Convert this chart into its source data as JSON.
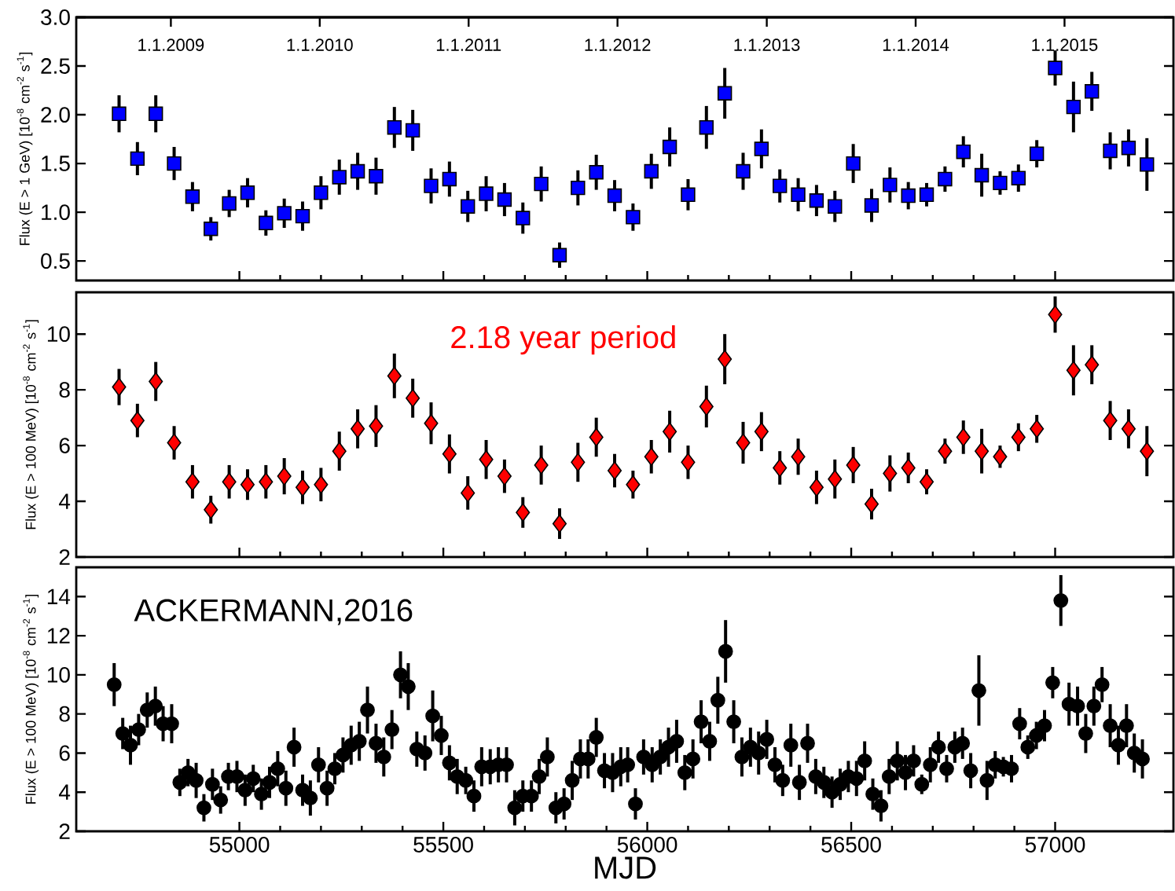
{
  "chart_data": [
    {
      "type": "scatter",
      "ylabel": "Flux (E > 1 GeV) [10$^{-8}$ cm$^{-2}$ s$^{-1}$]",
      "marker": "square",
      "color": "#0000ff",
      "tick_labels": "y",
      "xlim": [
        54600,
        57290
      ],
      "xticks": [
        55000,
        55500,
        56000,
        56500,
        57000
      ],
      "x2lim": [
        "2008-05-14",
        "2015-09-25"
      ],
      "x2ticks": [
        {
          "value": "2009-01-01",
          "label": "1.1.2009"
        },
        {
          "value": "2010-01-01",
          "label": "1.1.2010"
        },
        {
          "value": "2011-01-01",
          "label": "1.1.2011"
        },
        {
          "value": "2012-01-01",
          "label": "1.1.2012"
        },
        {
          "value": "2013-01-01",
          "label": "1.1.2013"
        },
        {
          "value": "2014-01-01",
          "label": "1.1.2014"
        },
        {
          "value": "2015-01-01",
          "label": "1.1.2015"
        }
      ],
      "ylim": [
        0.3,
        3.0
      ],
      "yticks": [
        0.5,
        {
          "value": 1,
          "label": "1.0"
        },
        1.5,
        {
          "value": 2,
          "label": "2.0"
        },
        2.5,
        {
          "value": 3,
          "label": "3.0"
        }
      ],
      "x": [
        54705,
        54750,
        54795,
        54840,
        54885,
        54930,
        54975,
        55020,
        55065,
        55110,
        55155,
        55200,
        55245,
        55290,
        55335,
        55380,
        55425,
        55470,
        55515,
        55560,
        55605,
        55650,
        55695,
        55740,
        55785,
        55830,
        55875,
        55920,
        55965,
        56010,
        56055,
        56100,
        56145,
        56190,
        56235,
        56280,
        56325,
        56370,
        56415,
        56460,
        56505,
        56550,
        56595,
        56640,
        56685,
        56730,
        56775,
        56820,
        56865,
        56910,
        56955,
        57000,
        57045,
        57090,
        57135,
        57180,
        57225
      ],
      "values": [
        2.01,
        1.55,
        2.01,
        1.5,
        1.16,
        0.83,
        1.09,
        1.2,
        0.89,
        0.99,
        0.96,
        1.2,
        1.36,
        1.42,
        1.37,
        1.87,
        1.84,
        1.27,
        1.34,
        1.06,
        1.19,
        1.13,
        0.94,
        1.29,
        0.56,
        1.25,
        1.41,
        1.17,
        0.95,
        1.42,
        1.67,
        1.18,
        1.87,
        2.22,
        1.42,
        1.65,
        1.27,
        1.18,
        1.12,
        1.06,
        1.5,
        1.07,
        1.28,
        1.17,
        1.18,
        1.34,
        1.62,
        1.38,
        1.3,
        1.35,
        1.6,
        2.48,
        2.08,
        2.24,
        1.63,
        1.66,
        1.49
      ],
      "errors": [
        0.19,
        0.17,
        0.19,
        0.17,
        0.15,
        0.12,
        0.14,
        0.15,
        0.13,
        0.15,
        0.15,
        0.17,
        0.18,
        0.19,
        0.19,
        0.21,
        0.21,
        0.18,
        0.18,
        0.16,
        0.18,
        0.17,
        0.16,
        0.18,
        0.13,
        0.18,
        0.18,
        0.16,
        0.14,
        0.18,
        0.2,
        0.16,
        0.22,
        0.26,
        0.19,
        0.2,
        0.17,
        0.17,
        0.16,
        0.16,
        0.2,
        0.17,
        0.18,
        0.14,
        0.12,
        0.13,
        0.16,
        0.22,
        0.12,
        0.14,
        0.14,
        0.18,
        0.26,
        0.2,
        0.19,
        0.19,
        0.27
      ]
    },
    {
      "type": "scatter",
      "ylabel": "Flux (E > 100 MeV) [10$^{-8}$ cm$^{-2}$ s$^{-1}$]",
      "marker": "diamond",
      "color": "#ff0000",
      "tick_labels": "y",
      "annotations": [
        "2.18 year period"
      ],
      "xlim": [
        54600,
        57290
      ],
      "xticks": [
        55000,
        55500,
        56000,
        56500,
        57000
      ],
      "ylim": [
        2,
        11.5
      ],
      "yticks": [
        2,
        4,
        6,
        8,
        10
      ],
      "x": [
        54705,
        54750,
        54795,
        54840,
        54885,
        54930,
        54975,
        55020,
        55065,
        55110,
        55155,
        55200,
        55245,
        55290,
        55335,
        55380,
        55425,
        55470,
        55515,
        55560,
        55605,
        55650,
        55695,
        55740,
        55785,
        55830,
        55875,
        55920,
        55965,
        56010,
        56055,
        56100,
        56145,
        56190,
        56235,
        56280,
        56325,
        56370,
        56415,
        56460,
        56505,
        56550,
        56595,
        56640,
        56685,
        56730,
        56775,
        56820,
        56865,
        56910,
        56955,
        57000,
        57045,
        57090,
        57135,
        57180,
        57225
      ],
      "values": [
        8.1,
        6.9,
        8.3,
        6.1,
        4.7,
        3.7,
        4.7,
        4.6,
        4.7,
        4.9,
        4.5,
        4.6,
        5.8,
        6.6,
        6.7,
        8.5,
        7.7,
        6.8,
        5.7,
        4.3,
        5.5,
        4.9,
        3.6,
        5.3,
        3.2,
        5.4,
        6.3,
        5.1,
        4.6,
        5.6,
        6.5,
        5.4,
        7.4,
        9.1,
        6.1,
        6.5,
        5.2,
        5.6,
        4.5,
        4.8,
        5.3,
        3.9,
        5.0,
        5.2,
        4.7,
        5.8,
        6.3,
        5.8,
        5.6,
        6.3,
        6.6,
        10.7,
        8.7,
        8.9,
        6.9,
        6.6,
        5.8
      ],
      "errors": [
        0.65,
        0.6,
        0.7,
        0.6,
        0.6,
        0.5,
        0.6,
        0.55,
        0.6,
        0.65,
        0.6,
        0.6,
        0.7,
        0.7,
        0.75,
        0.8,
        0.7,
        0.75,
        0.7,
        0.6,
        0.7,
        0.6,
        0.55,
        0.7,
        0.55,
        0.7,
        0.7,
        0.6,
        0.5,
        0.6,
        0.75,
        0.6,
        0.75,
        0.9,
        0.75,
        0.7,
        0.6,
        0.65,
        0.6,
        0.7,
        0.65,
        0.55,
        0.65,
        0.55,
        0.45,
        0.45,
        0.6,
        0.8,
        0.4,
        0.5,
        0.5,
        0.65,
        0.9,
        0.7,
        0.7,
        0.7,
        0.9
      ]
    },
    {
      "type": "scatter",
      "ylabel": "Flux (E > 100 MeV) [10$^{-8}$ cm$^{-2}$ s$^{-1}$]",
      "xlabel": "MJD",
      "marker": "circle",
      "color": "#000000",
      "annotations": [
        "ACKERMANN,2016"
      ],
      "xlim": [
        54600,
        57290
      ],
      "xticks": [
        55000,
        55500,
        56000,
        56500,
        57000
      ],
      "ylim": [
        2,
        15.5
      ],
      "yticks": [
        2,
        4,
        6,
        8,
        10,
        12,
        14
      ],
      "x": [
        54693,
        54714,
        54733,
        54753,
        54774,
        54794,
        54813,
        54834,
        54854,
        54874,
        54894,
        54913,
        54934,
        54954,
        54973,
        54994,
        55014,
        55034,
        55054,
        55074,
        55094,
        55114,
        55134,
        55155,
        55174,
        55194,
        55215,
        55234,
        55254,
        55274,
        55294,
        55314,
        55335,
        55354,
        55374,
        55395,
        55414,
        55435,
        55455,
        55474,
        55495,
        55515,
        55534,
        55555,
        55575,
        55594,
        55615,
        55635,
        55655,
        55675,
        55695,
        55716,
        55735,
        55755,
        55776,
        55796,
        55816,
        55836,
        55855,
        55875,
        55895,
        55915,
        55935,
        55952,
        55971,
        55991,
        56012,
        56032,
        56052,
        56072,
        56092,
        56112,
        56132,
        56153,
        56173,
        56192,
        56212,
        56232,
        56253,
        56273,
        56293,
        56313,
        56332,
        56352,
        56373,
        56393,
        56413,
        56433,
        56453,
        56473,
        56493,
        56513,
        56533,
        56553,
        56573,
        56593,
        56613,
        56633,
        56653,
        56673,
        56694,
        56714,
        56734,
        56754,
        56773,
        56793,
        56813,
        56833,
        56853,
        56873,
        56893,
        56913,
        56933,
        56954,
        56974,
        56994,
        57014,
        57034,
        57055,
        57075,
        57095,
        57115,
        57135,
        57155,
        57175,
        57194,
        57214
      ],
      "values": [
        9.5,
        7.0,
        6.4,
        7.2,
        8.2,
        8.4,
        7.5,
        7.5,
        4.5,
        5.0,
        4.6,
        3.2,
        4.4,
        3.6,
        4.8,
        4.8,
        4.1,
        4.7,
        3.9,
        4.5,
        5.2,
        4.2,
        6.3,
        4.1,
        3.7,
        5.4,
        4.2,
        5.2,
        5.9,
        6.4,
        6.6,
        8.2,
        6.5,
        5.8,
        7.2,
        10.0,
        9.4,
        6.2,
        6.0,
        7.9,
        6.9,
        5.5,
        4.8,
        4.6,
        3.8,
        5.3,
        5.3,
        5.4,
        5.4,
        3.2,
        3.8,
        3.8,
        4.8,
        5.8,
        3.2,
        3.4,
        4.6,
        5.7,
        5.7,
        6.8,
        5.1,
        5.0,
        5.3,
        5.4,
        3.4,
        5.8,
        5.4,
        5.8,
        6.3,
        6.6,
        5.0,
        5.7,
        7.6,
        6.6,
        8.7,
        11.2,
        7.6,
        5.8,
        6.3,
        6.0,
        6.7,
        5.4,
        4.6,
        6.4,
        4.5,
        6.5,
        4.8,
        4.5,
        4.0,
        4.4,
        4.8,
        4.7,
        5.6,
        3.9,
        3.3,
        4.8,
        5.6,
        5.0,
        5.6,
        4.4,
        5.4,
        6.3,
        5.2,
        6.3,
        6.5,
        5.1,
        9.2,
        4.6,
        5.4,
        5.3,
        5.2,
        7.5,
        6.3,
        6.9,
        7.4,
        9.6,
        13.8,
        8.5,
        8.4,
        7.0,
        8.4,
        9.5,
        7.4,
        6.4,
        7.4,
        6.0,
        5.7
      ],
      "errors": [
        1.1,
        0.8,
        1.0,
        0.8,
        0.9,
        1.0,
        0.9,
        1.0,
        0.7,
        0.7,
        0.9,
        0.7,
        0.8,
        0.7,
        0.7,
        0.8,
        0.8,
        0.7,
        0.8,
        0.8,
        0.9,
        0.9,
        1.0,
        0.8,
        0.9,
        0.9,
        0.9,
        0.8,
        0.9,
        1.0,
        1.0,
        1.2,
        1.0,
        1.0,
        1.0,
        1.2,
        1.2,
        0.9,
        0.9,
        1.3,
        1.0,
        0.9,
        0.9,
        0.7,
        0.8,
        1.0,
        0.9,
        0.9,
        0.9,
        0.9,
        0.8,
        0.8,
        0.9,
        1.0,
        0.8,
        0.8,
        1.0,
        1.0,
        1.0,
        1.0,
        0.9,
        1.0,
        1.0,
        0.9,
        0.8,
        0.9,
        0.9,
        0.9,
        1.0,
        1.1,
        0.9,
        1.0,
        1.1,
        1.0,
        1.2,
        1.6,
        1.1,
        1.0,
        1.0,
        1.1,
        1.0,
        0.9,
        0.8,
        1.1,
        0.9,
        1.0,
        0.9,
        0.8,
        0.8,
        0.8,
        0.8,
        0.9,
        1.0,
        0.8,
        0.8,
        0.9,
        1.0,
        0.9,
        0.8,
        0.5,
        0.9,
        0.8,
        0.7,
        0.8,
        0.8,
        0.9,
        1.8,
        1.0,
        0.7,
        0.5,
        0.7,
        0.8,
        0.6,
        0.7,
        0.8,
        0.8,
        1.3,
        1.1,
        1.0,
        1.0,
        1.0,
        0.9,
        1.1,
        1.0,
        1.1,
        1.0,
        1.0
      ]
    }
  ]
}
